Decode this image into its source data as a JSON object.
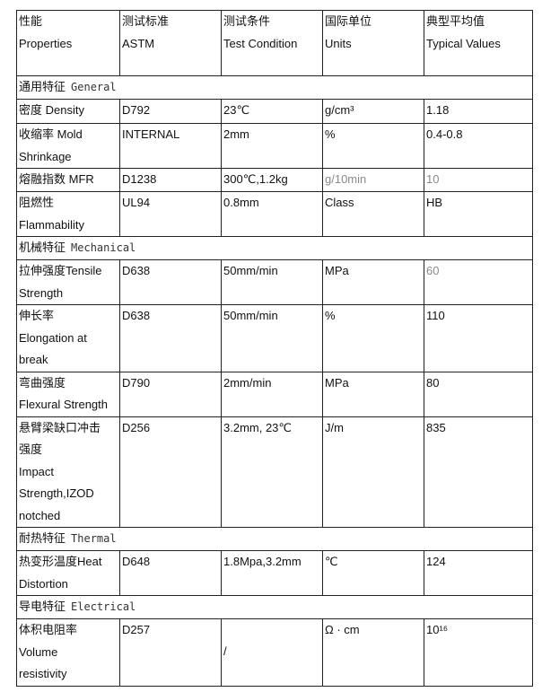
{
  "header": [
    [
      "性能",
      "Properties"
    ],
    [
      "测试标准",
      "ASTM"
    ],
    [
      "测试条件",
      "Test Condition"
    ],
    [
      "国际单位",
      "Units"
    ],
    [
      "典型平均值",
      "Typical Values"
    ]
  ],
  "muted_color": "#8a8a8a",
  "sections": [
    {
      "zh": "通用特征",
      "en": "General",
      "rows": [
        {
          "property": [
            "密度  Density"
          ],
          "astm": "D792",
          "condition": "23℃",
          "units": "g/cm³",
          "value": "1.18"
        },
        {
          "property": [
            "收缩率  Mold",
            "Shrinkage"
          ],
          "astm": "INTERNAL",
          "condition": "2mm",
          "units": "%",
          "value": "0.4-0.8"
        },
        {
          "property": [
            "熔融指数  MFR"
          ],
          "astm": "D1238",
          "condition": "300℃,1.2kg",
          "units": "g/10min",
          "value": "10",
          "muted": [
            "units",
            "value"
          ]
        },
        {
          "property": [
            "阻燃性",
            "Flammability"
          ],
          "astm": "UL94",
          "condition": "0.8mm",
          "units": "Class",
          "value": "HB"
        }
      ]
    },
    {
      "zh": "机械特征",
      "en": "Mechanical",
      "rows": [
        {
          "property": [
            "拉伸强度Tensile",
            "Strength"
          ],
          "astm": "D638",
          "condition": "50mm/min",
          "units": "MPa",
          "value": "60",
          "muted": [
            "value"
          ]
        },
        {
          "property": [
            "伸长率",
            "Elongation at",
            "break"
          ],
          "astm": "D638",
          "condition": "50mm/min",
          "units": "%",
          "value": "110"
        },
        {
          "property": [
            "弯曲强度",
            "Flexural Strength"
          ],
          "astm": "D790",
          "condition": "2mm/min",
          "units": "MPa",
          "value": "80"
        },
        {
          "property": [
            "悬臂梁缺口冲击",
            "强度",
            "Impact",
            "Strength,IZOD",
            "notched"
          ],
          "astm": "D256",
          "condition": "3.2mm, 23℃",
          "units": "J/m",
          "value": "835"
        }
      ]
    },
    {
      "zh": "耐热特征",
      "en": "Thermal",
      "rows": [
        {
          "property": [
            "热变形温度Heat",
            "Distortion"
          ],
          "astm": "D648",
          "condition": "1.8Mpa,3.2mm",
          "units": "℃",
          "value": "124"
        }
      ]
    },
    {
      "zh": "导电特征",
      "en": "Electrical",
      "rows": [
        {
          "property": [
            "体积电阻率",
            "Volume",
            "resistivity"
          ],
          "astm": "D257",
          "condition": "/",
          "units": "Ω · cm",
          "value": "10¹⁶"
        }
      ]
    }
  ]
}
